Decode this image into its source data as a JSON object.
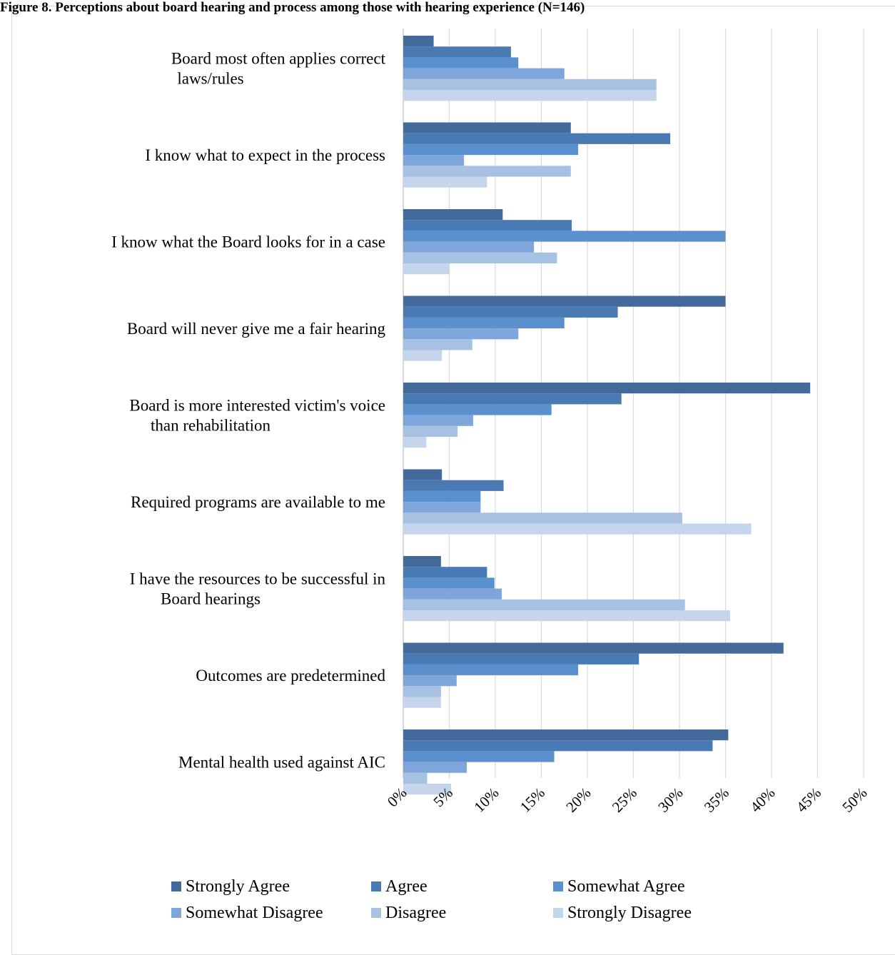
{
  "page": {
    "title": "Figure 8. Perceptions about board hearing and process among those with hearing experience (N=146)"
  },
  "chart_data": {
    "type": "bar",
    "orientation": "horizontal",
    "title": "Figure 8. Perceptions about board hearing and process among those with hearing experience (N=146)",
    "xlabel": "",
    "ylabel": "",
    "xlim": [
      0,
      50
    ],
    "x_tick_labels": [
      "0%",
      "5%",
      "10%",
      "15%",
      "20%",
      "25%",
      "30%",
      "35%",
      "40%",
      "45%",
      "50%"
    ],
    "grid": true,
    "legend_position": "bottom",
    "categories": [
      "Board most often applies correct laws/rules",
      "I know what to expect in the process",
      "I know what the Board looks for in a case",
      "Board will never give me a fair hearing",
      "Board is more interested victim's voice than rehabilitation",
      "Required programs are available to me",
      "I have the resources to be successful in Board hearings",
      "Outcomes are predetermined",
      "Mental health used against AIC"
    ],
    "series": [
      {
        "name": "Strongly Agree",
        "color": "#44699b",
        "values": [
          3.3,
          18.2,
          10.8,
          35.0,
          44.2,
          4.2,
          4.1,
          41.3,
          35.3
        ]
      },
      {
        "name": "Agree",
        "color": "#4a7ab3",
        "values": [
          11.7,
          29.0,
          18.3,
          23.3,
          23.7,
          10.9,
          9.1,
          25.6,
          33.6
        ]
      },
      {
        "name": "Somewhat Agree",
        "color": "#5b90cf",
        "values": [
          12.5,
          19.0,
          35.0,
          17.5,
          16.1,
          8.4,
          9.9,
          19.0,
          16.4
        ]
      },
      {
        "name": "Somewhat Disagree",
        "color": "#7ea6da",
        "values": [
          17.5,
          6.6,
          14.2,
          12.5,
          7.6,
          8.4,
          10.7,
          5.8,
          6.9
        ]
      },
      {
        "name": "Disagree",
        "color": "#a7c1e3",
        "values": [
          27.5,
          18.2,
          16.7,
          7.5,
          5.9,
          30.3,
          30.6,
          4.1,
          2.6
        ]
      },
      {
        "name": "Strongly Disagree",
        "color": "#c5d5ec",
        "values": [
          27.5,
          9.1,
          5.0,
          4.2,
          2.5,
          37.8,
          35.5,
          4.1,
          5.2
        ]
      }
    ]
  }
}
